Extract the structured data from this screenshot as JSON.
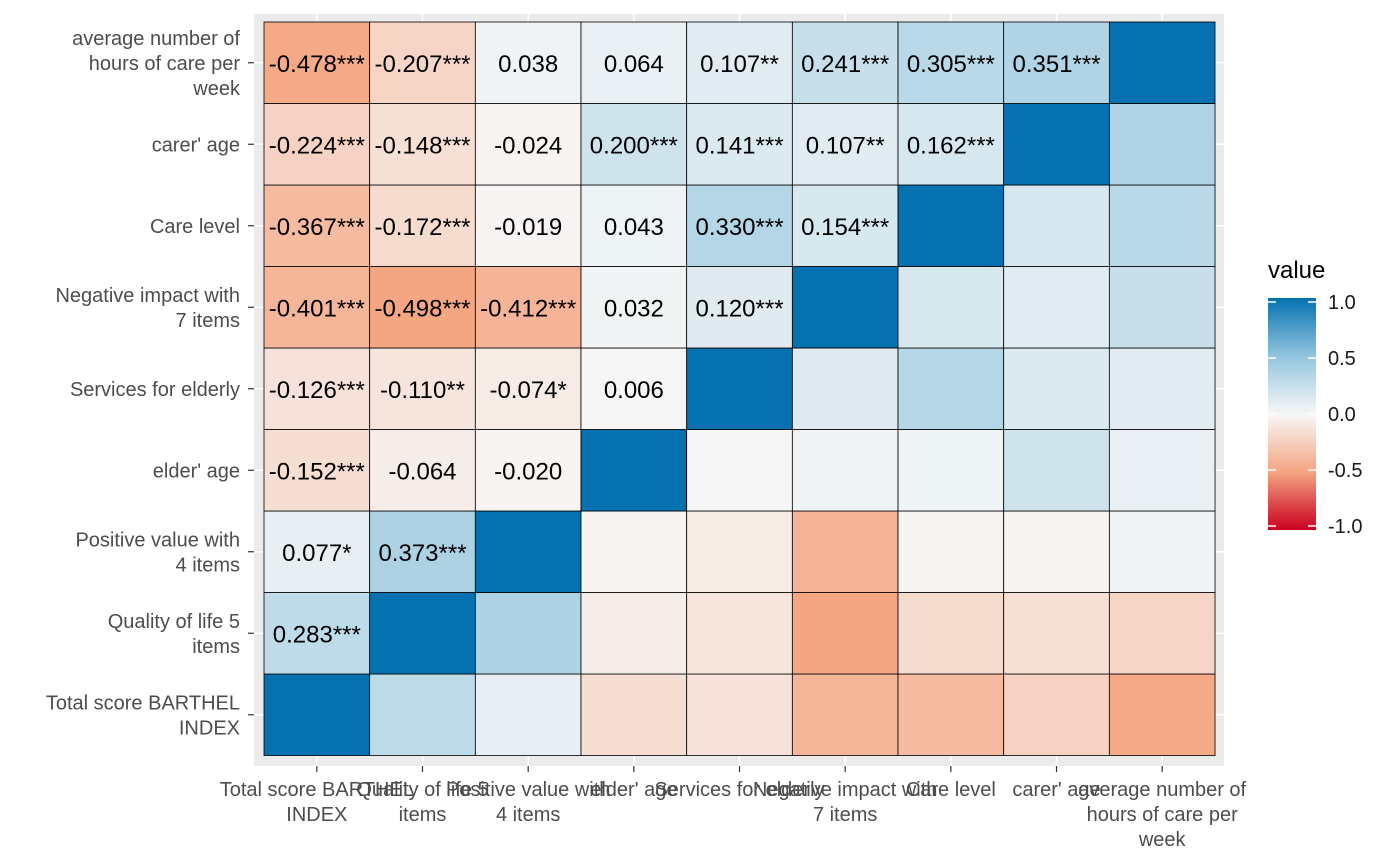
{
  "chart_data": {
    "type": "heatmap",
    "title": "",
    "xlabel": "",
    "ylabel": "",
    "variables": [
      "Total score BARTHEL INDEX",
      "Quality of life 5 items",
      "Positive value with 4 items",
      "elder' age",
      "Services for elderly",
      "Negative impact with 7 items",
      "Care level",
      "carer' age",
      "average number of hours of care per week"
    ],
    "x_tick_labels": [
      [
        "Total score BARTHEL",
        "INDEX"
      ],
      [
        "Quality of life 5",
        "items"
      ],
      [
        "Positive value with",
        "4 items"
      ],
      [
        "elder' age"
      ],
      [
        "Services for elderly"
      ],
      [
        "Negative impact with",
        "7 items"
      ],
      [
        "Care level"
      ],
      [
        "carer' age"
      ],
      [
        "average number of",
        "hours of care per",
        "week"
      ]
    ],
    "y_tick_labels": [
      [
        "Total score BARTHEL",
        "INDEX"
      ],
      [
        "Quality of life 5",
        "items"
      ],
      [
        "Positive value with",
        "4 items"
      ],
      [
        "elder' age"
      ],
      [
        "Services for elderly"
      ],
      [
        "Negative impact with",
        "7 items"
      ],
      [
        "Care level"
      ],
      [
        "carer' age"
      ],
      [
        "average number of",
        "hours of care per",
        "week"
      ]
    ],
    "values": [
      [
        1.0,
        0.283,
        0.077,
        -0.152,
        -0.126,
        -0.401,
        -0.367,
        -0.224,
        -0.478
      ],
      [
        0.283,
        1.0,
        0.373,
        -0.064,
        -0.11,
        -0.498,
        -0.172,
        -0.148,
        -0.207
      ],
      [
        0.077,
        0.373,
        1.0,
        -0.02,
        -0.074,
        -0.412,
        -0.019,
        -0.024,
        0.038
      ],
      [
        -0.152,
        -0.064,
        -0.02,
        1.0,
        0.006,
        0.032,
        0.043,
        0.2,
        0.064
      ],
      [
        -0.126,
        -0.11,
        -0.074,
        0.006,
        1.0,
        0.12,
        0.33,
        0.141,
        0.107
      ],
      [
        -0.401,
        -0.498,
        -0.412,
        0.032,
        0.12,
        1.0,
        0.154,
        0.107,
        0.241
      ],
      [
        -0.367,
        -0.172,
        -0.019,
        0.043,
        0.33,
        0.154,
        1.0,
        0.162,
        0.305
      ],
      [
        -0.224,
        -0.148,
        -0.024,
        0.2,
        0.141,
        0.107,
        0.162,
        1.0,
        0.351
      ],
      [
        -0.478,
        -0.207,
        0.038,
        0.064,
        0.107,
        0.241,
        0.305,
        0.351,
        1.0
      ]
    ],
    "labels": [
      [
        "",
        "",
        "",
        "",
        "",
        "",
        "",
        "",
        ""
      ],
      [
        "0.283***",
        "",
        "",
        "",
        "",
        "",
        "",
        "",
        ""
      ],
      [
        "0.077*",
        "0.373***",
        "",
        "",
        "",
        "",
        "",
        "",
        ""
      ],
      [
        "-0.152***",
        "-0.064",
        "-0.020",
        "",
        "",
        "",
        "",
        "",
        ""
      ],
      [
        "-0.126***",
        "-0.110**",
        "-0.074*",
        "0.006",
        "",
        "",
        "",
        "",
        ""
      ],
      [
        "-0.401***",
        "-0.498***",
        "-0.412***",
        "0.032",
        "0.120***",
        "",
        "",
        "",
        ""
      ],
      [
        "-0.367***",
        "-0.172***",
        "-0.019",
        "0.043",
        "0.330***",
        "0.154***",
        "",
        "",
        ""
      ],
      [
        "-0.224***",
        "-0.148***",
        "-0.024",
        "0.200***",
        "0.141***",
        "0.107**",
        "0.162***",
        "",
        ""
      ],
      [
        "-0.478***",
        "-0.207***",
        "0.038",
        "0.064",
        "0.107**",
        "0.241***",
        "0.305***",
        "0.351***",
        ""
      ]
    ],
    "value_range": [
      -1,
      1
    ],
    "colorscale": [
      "#ca0020",
      "#f4a582",
      "#f7f7f7",
      "#92c5de",
      "#0571b0"
    ],
    "legend": {
      "title": "value",
      "ticks": [
        "1.0",
        "0.5",
        "0.0",
        "-0.5",
        "-1.0"
      ],
      "tick_values": [
        1.0,
        0.5,
        0.0,
        -0.5,
        -1.0
      ],
      "position": "right"
    },
    "panel_background": "#ebebeb",
    "grid": true
  }
}
